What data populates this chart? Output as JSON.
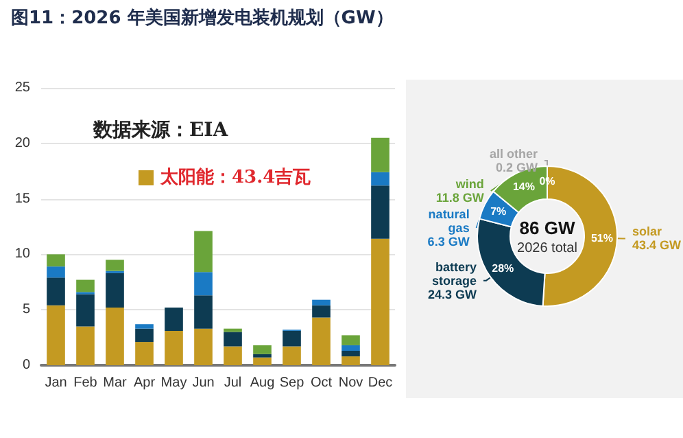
{
  "chart_data": [
    {
      "type": "bar",
      "title": "图11：2026 年美国新增发电装机规划（GW）",
      "stacked": true,
      "grid": "y",
      "ylim": [
        0,
        25
      ],
      "yticks": [
        0,
        5,
        10,
        15,
        20,
        25
      ],
      "annotations": [
        "数据来源：EIA",
        "太阳能：43.4吉瓦"
      ],
      "categories": [
        "Jan",
        "Feb",
        "Mar",
        "Apr",
        "May",
        "Jun",
        "Jul",
        "Aug",
        "Sep",
        "Oct",
        "Nov",
        "Dec"
      ],
      "series": [
        {
          "color": "#c49a22",
          "values": [
            5.4,
            3.5,
            5.2,
            2.1,
            3.1,
            3.3,
            1.7,
            0.7,
            1.7,
            4.3,
            0.8,
            11.4
          ]
        },
        {
          "color": "#0d3b52",
          "values": [
            2.5,
            2.9,
            3.1,
            1.2,
            2.1,
            3.0,
            1.3,
            0.3,
            1.4,
            1.1,
            0.5,
            4.8
          ]
        },
        {
          "color": "#1a7ac4",
          "values": [
            1.0,
            0.2,
            0.2,
            0.4,
            0,
            2.1,
            0,
            0,
            0.1,
            0.5,
            0.5,
            1.2
          ]
        },
        {
          "color": "#6aa43a",
          "values": [
            1.1,
            1.1,
            1.0,
            0,
            0,
            3.7,
            0.3,
            0.8,
            0,
            0,
            0.9,
            3.1
          ]
        }
      ]
    },
    {
      "type": "donut",
      "annotations": [
        "86 GW",
        "2026 total"
      ],
      "categories": [
        "solar\n43.4 GW",
        "battery\nstorage\n24.3 GW",
        "natural\ngas\n6.3 GW",
        "wind\n11.8 GW",
        "all other\n0.2 GW"
      ],
      "values": [
        51,
        28,
        7,
        14,
        0
      ],
      "value_labels": [
        "51%",
        "28%",
        "7%",
        "14%",
        "0%"
      ],
      "colors": [
        "#c49a22",
        "#0d3b52",
        "#1a7ac4",
        "#6aa43a",
        "#a6a6a6"
      ]
    }
  ]
}
